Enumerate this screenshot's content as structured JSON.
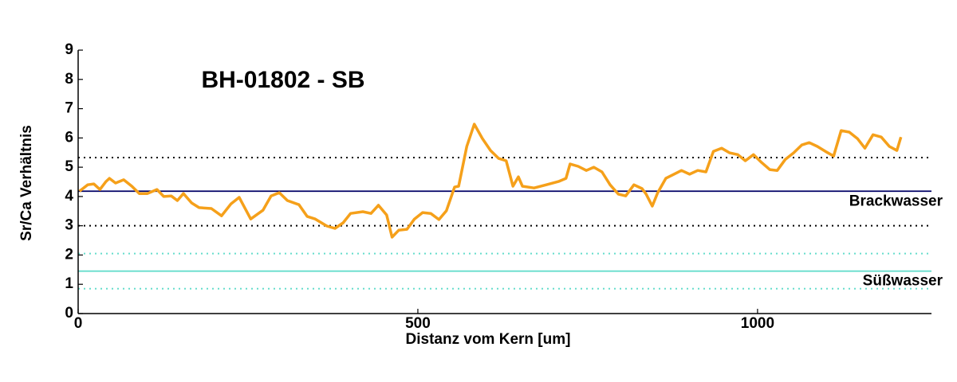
{
  "chart_data": {
    "type": "line",
    "title": "BH-01802 - SB",
    "x_label": "Distanz vom Kern [um]",
    "y_label": "Sr/Ca Verhältnis",
    "xlim": [
      0,
      1256
    ],
    "ylim": [
      0,
      9
    ],
    "xticks": [
      0,
      500,
      1000
    ],
    "yticks": [
      0,
      1,
      2,
      3,
      4,
      5,
      6,
      7,
      8,
      9
    ],
    "reference_lines": [
      {
        "value": 5.33,
        "color": "#000000",
        "style": "dotted"
      },
      {
        "value": 4.18,
        "color": "#000066",
        "style": "solid",
        "label": "Brackwasser"
      },
      {
        "value": 3.0,
        "color": "#000000",
        "style": "dotted"
      },
      {
        "value": 2.05,
        "color": "#66ddcc",
        "style": "dotted"
      },
      {
        "value": 1.45,
        "color": "#66ddcc",
        "style": "solid",
        "label": "Süßwasser"
      },
      {
        "value": 0.85,
        "color": "#66ddcc",
        "style": "dotted"
      }
    ],
    "series": [
      {
        "color": "#f5a01a",
        "x": [
          2,
          14,
          23,
          32,
          41,
          46,
          55,
          67,
          79,
          90,
          102,
          116,
          126,
          137,
          146,
          155,
          167,
          178,
          196,
          211,
          225,
          237,
          254,
          272,
          284,
          296,
          308,
          325,
          337,
          349,
          366,
          378,
          390,
          401,
          419,
          431,
          442,
          454,
          462,
          472,
          484,
          495,
          507,
          519,
          531,
          542,
          554,
          560,
          572,
          583,
          595,
          607,
          619,
          630,
          640,
          648,
          654,
          671,
          689,
          707,
          718,
          724,
          736,
          748,
          759,
          771,
          783,
          795,
          806,
          818,
          830,
          836,
          845,
          853,
          865,
          877,
          888,
          900,
          912,
          924,
          935,
          947,
          959,
          971,
          982,
          994,
          1006,
          1018,
          1029,
          1041,
          1053,
          1065,
          1076,
          1088,
          1100,
          1112,
          1123,
          1135,
          1147,
          1158,
          1170,
          1182,
          1194,
          1205,
          1211
        ],
        "values": [
          4.18,
          4.4,
          4.43,
          4.24,
          4.51,
          4.62,
          4.46,
          4.57,
          4.35,
          4.1,
          4.1,
          4.24,
          4.0,
          4.02,
          3.86,
          4.1,
          3.78,
          3.62,
          3.59,
          3.34,
          3.75,
          3.97,
          3.23,
          3.53,
          4.02,
          4.13,
          3.86,
          3.72,
          3.32,
          3.23,
          2.99,
          2.91,
          3.1,
          3.42,
          3.48,
          3.42,
          3.7,
          3.37,
          2.61,
          2.85,
          2.88,
          3.23,
          3.45,
          3.42,
          3.21,
          3.51,
          4.32,
          4.35,
          5.71,
          6.47,
          5.98,
          5.57,
          5.3,
          5.22,
          4.35,
          4.67,
          4.35,
          4.29,
          4.4,
          4.51,
          4.62,
          5.11,
          5.03,
          4.89,
          5.0,
          4.84,
          4.4,
          4.08,
          4.02,
          4.4,
          4.27,
          4.08,
          3.67,
          4.13,
          4.62,
          4.76,
          4.89,
          4.76,
          4.89,
          4.84,
          5.54,
          5.65,
          5.49,
          5.43,
          5.22,
          5.43,
          5.16,
          4.92,
          4.89,
          5.27,
          5.49,
          5.76,
          5.84,
          5.71,
          5.54,
          5.38,
          6.25,
          6.2,
          5.98,
          5.65,
          6.11,
          6.03,
          5.71,
          5.57,
          6.03
        ]
      }
    ]
  }
}
